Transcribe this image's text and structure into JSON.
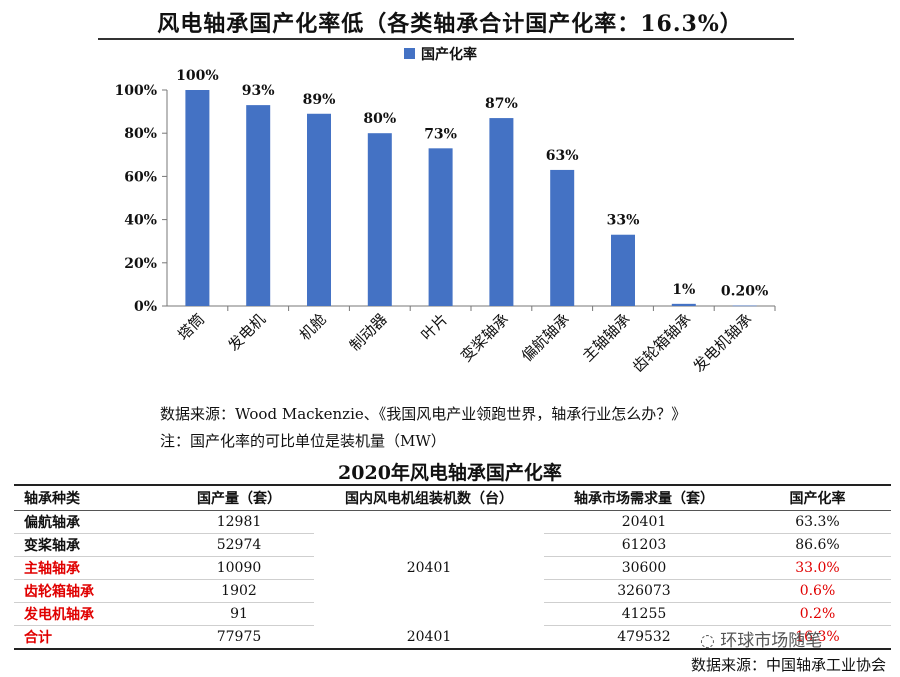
{
  "title": "风电轴承国产化率低（各类轴承合计国产化率：16.3%）",
  "chart_data": {
    "type": "bar",
    "title": "风电轴承国产化率低（各类轴承合计国产化率：16.3%）",
    "legend": {
      "label": "国产化率",
      "placement": "top-center",
      "color": "#4472C4"
    },
    "categories": [
      "塔筒",
      "发电机",
      "机舱",
      "制动器",
      "叶片",
      "变桨轴承",
      "偏航轴承",
      "主轴轴承",
      "齿轮箱轴承",
      "发电机轴承"
    ],
    "values": [
      100,
      93,
      89,
      80,
      73,
      87,
      63,
      33,
      1,
      0.2
    ],
    "data_labels": [
      "100%",
      "93%",
      "89%",
      "80%",
      "73%",
      "87%",
      "63%",
      "33%",
      "1%",
      "0.20%"
    ],
    "ylim": [
      0,
      100
    ],
    "yticks": [
      "0%",
      "20%",
      "40%",
      "60%",
      "80%",
      "100%"
    ],
    "grid": false,
    "bar_color": "#4472C4"
  },
  "notes": {
    "source": "数据来源：Wood Mackenzie、《我国风电产业领跑世界，轴承行业怎么办？》",
    "unit_note": "注：国产化率的可比单位是装机量（MW）"
  },
  "table": {
    "title": "2020年风电轴承国产化率",
    "headers": [
      "轴承种类",
      "国产量（套）",
      "国内风电机组装机数（台）",
      "轴承市场需求量（套）",
      "国产化率"
    ],
    "rows": [
      {
        "name": "偏航轴承",
        "output": "12981",
        "demand": "20401",
        "rate": "63.3%",
        "red": false
      },
      {
        "name": "变桨轴承",
        "output": "52974",
        "demand": "61203",
        "rate": "86.6%",
        "red": false
      },
      {
        "name": "主轴轴承",
        "output": "10090",
        "demand": "30600",
        "rate": "33.0%",
        "red": true
      },
      {
        "name": "齿轮箱轴承",
        "output": "1902",
        "demand": "326073",
        "rate": "0.6%",
        "red": true
      },
      {
        "name": "发电机轴承",
        "output": "91",
        "demand": "41255",
        "rate": "0.2%",
        "red": true
      }
    ],
    "installed_merged": "20401",
    "total": {
      "name": "合计",
      "output": "77975",
      "installed": "20401",
      "demand": "479532",
      "rate": "16.3%"
    },
    "source": "数据来源：中国轴承工业协会"
  },
  "watermark": "环球市场随笔",
  "colors": {
    "red": "#e00000",
    "bar": "#4472C4"
  }
}
